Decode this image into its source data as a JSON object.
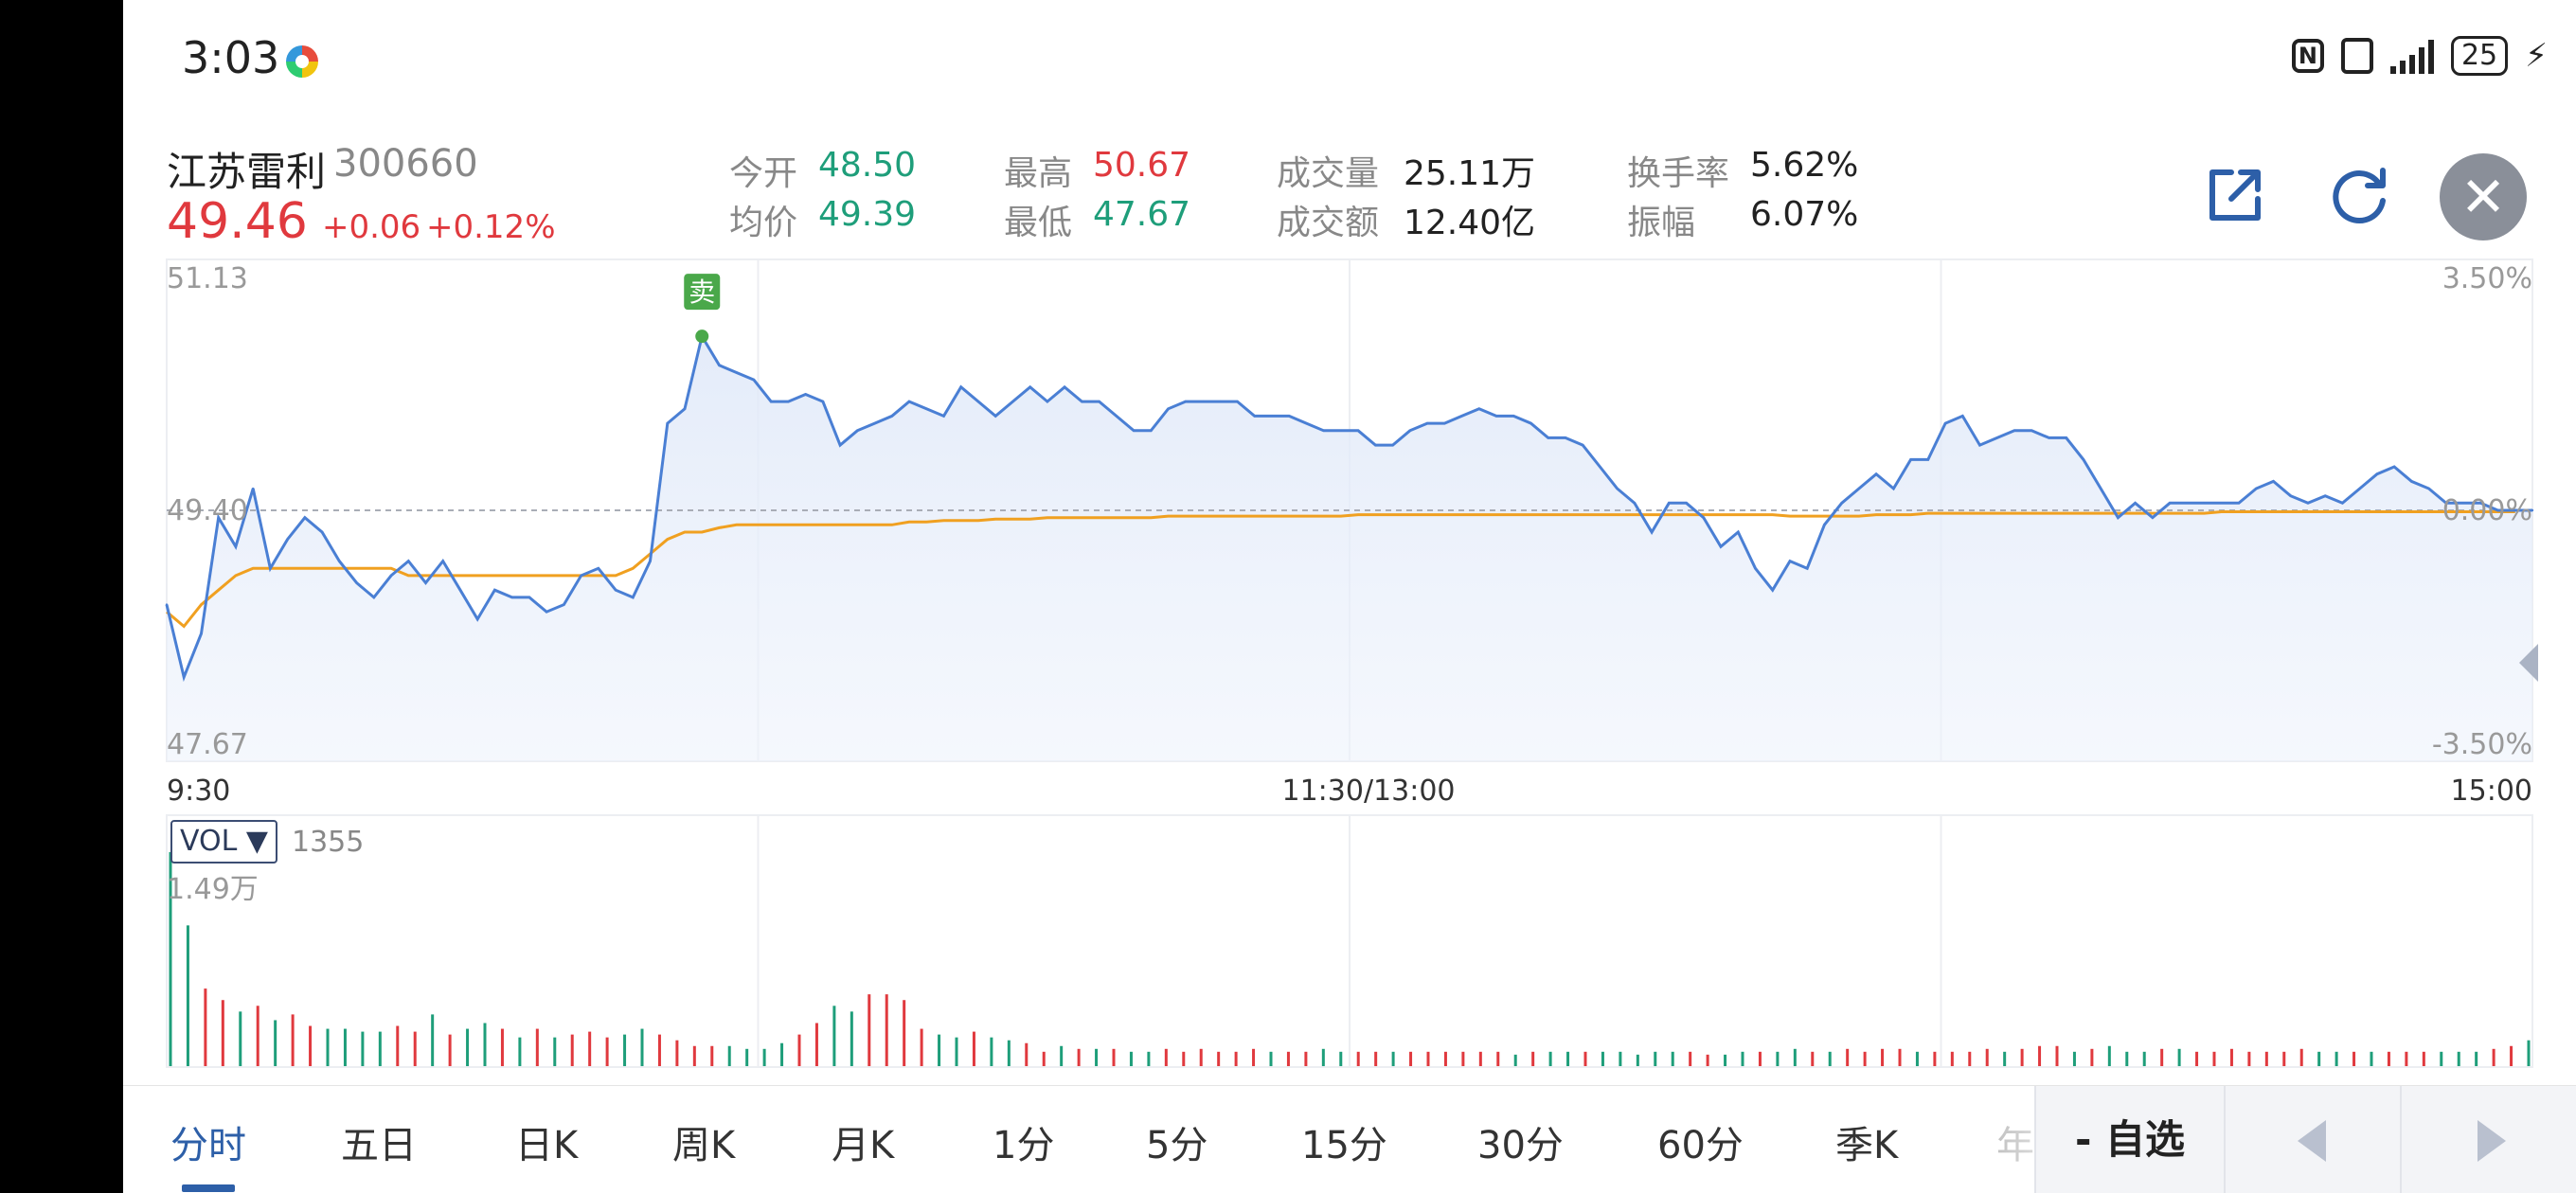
{
  "status_bar": {
    "time": "3:03",
    "battery": "25",
    "app_icon": "colorful-app-icon",
    "icons": [
      "nfc-icon",
      "vibrate-icon",
      "signal-icon",
      "battery-icon",
      "charging-icon"
    ]
  },
  "stock": {
    "name": "江苏雷利",
    "code": "300660",
    "price": "49.46",
    "change": "+0.06",
    "change_pct": "+0.12%"
  },
  "quote": {
    "open_label": "今开",
    "open": "48.50",
    "avg_label": "均价",
    "avg": "49.39",
    "high_label": "最高",
    "high": "50.67",
    "low_label": "最低",
    "low": "47.67",
    "volume_label": "成交量",
    "volume": "25.11万",
    "amount_label": "成交额",
    "amount": "12.40亿",
    "turnover_label": "换手率",
    "turnover": "5.62%",
    "amplitude_label": "振幅",
    "amplitude": "6.07%"
  },
  "toolbar_icons": [
    "share-icon",
    "refresh-icon",
    "close-icon"
  ],
  "chart": {
    "price_max_label": "51.13",
    "price_ref_label": "49.40",
    "price_min_label": "47.67",
    "pct_max_label": "3.50%",
    "pct_ref_label": "0.00%",
    "pct_min_label": "-3.50%",
    "time_start": "9:30",
    "time_mid": "11:30/13:00",
    "time_end": "15:00",
    "signal_label": "卖",
    "vol_selector": "VOL ▼",
    "vol_value": "1355",
    "vol_max_label": "1.49万"
  },
  "chart_data": {
    "type": "line",
    "ylim": [
      47.67,
      51.13
    ],
    "reference": 49.4,
    "x_range": [
      "9:30",
      "15:00"
    ],
    "series": [
      {
        "values": [
          48.75,
          48.25,
          48.55,
          49.35,
          49.15,
          49.55,
          49.0,
          49.2,
          49.35,
          49.25,
          49.05,
          48.9,
          48.8,
          48.95,
          49.05,
          48.9,
          49.05,
          48.85,
          48.65,
          48.85,
          48.8,
          48.8,
          48.7,
          48.75,
          48.95,
          49.0,
          48.85,
          48.8,
          49.05,
          50.0,
          50.1,
          50.6,
          50.4,
          50.35,
          50.3,
          50.15,
          50.15,
          50.2,
          50.15,
          49.85,
          49.95,
          50.0,
          50.05,
          50.15,
          50.1,
          50.05,
          50.25,
          50.15,
          50.05,
          50.15,
          50.25,
          50.15,
          50.25,
          50.15,
          50.15,
          50.05,
          49.95,
          49.95,
          50.1,
          50.15,
          50.15,
          50.15,
          50.15,
          50.05,
          50.05,
          50.05,
          50.0,
          49.95,
          49.95,
          49.95,
          49.85,
          49.85,
          49.95,
          50.0,
          50.0,
          50.05,
          50.1,
          50.05,
          50.05,
          50.0,
          49.9,
          49.9,
          49.85,
          49.7,
          49.55,
          49.45,
          49.25,
          49.45,
          49.45,
          49.35,
          49.15,
          49.25,
          49.0,
          48.85,
          49.05,
          49.0,
          49.3,
          49.45,
          49.55,
          49.65,
          49.55,
          49.75,
          49.75,
          50.0,
          50.05,
          49.85,
          49.9,
          49.95,
          49.95,
          49.9,
          49.9,
          49.75,
          49.55,
          49.35,
          49.45,
          49.35,
          49.45,
          49.45,
          49.45,
          49.45,
          49.45,
          49.55,
          49.6,
          49.5,
          49.45,
          49.5,
          49.45,
          49.55,
          49.65,
          49.7,
          49.6,
          49.55,
          49.45,
          49.45,
          49.45,
          49.4,
          49.4,
          49.4
        ],
        "color": "#4a7fd4"
      },
      {
        "values": [
          48.7,
          48.6,
          48.75,
          48.85,
          48.95,
          49.0,
          49.0,
          49.0,
          49.0,
          49.0,
          49.0,
          49.0,
          49.0,
          49.0,
          48.95,
          48.95,
          48.95,
          48.95,
          48.95,
          48.95,
          48.95,
          48.95,
          48.95,
          48.95,
          48.95,
          48.95,
          48.95,
          49.0,
          49.1,
          49.2,
          49.25,
          49.25,
          49.28,
          49.3,
          49.3,
          49.3,
          49.3,
          49.3,
          49.3,
          49.3,
          49.3,
          49.3,
          49.3,
          49.32,
          49.32,
          49.33,
          49.33,
          49.33,
          49.34,
          49.34,
          49.34,
          49.35,
          49.35,
          49.35,
          49.35,
          49.35,
          49.35,
          49.35,
          49.36,
          49.36,
          49.36,
          49.36,
          49.36,
          49.36,
          49.36,
          49.36,
          49.36,
          49.36,
          49.36,
          49.37,
          49.37,
          49.37,
          49.37,
          49.37,
          49.37,
          49.37,
          49.37,
          49.37,
          49.37,
          49.37,
          49.37,
          49.37,
          49.37,
          49.37,
          49.37,
          49.37,
          49.37,
          49.37,
          49.37,
          49.37,
          49.37,
          49.37,
          49.37,
          49.37,
          49.36,
          49.36,
          49.36,
          49.36,
          49.36,
          49.37,
          49.37,
          49.37,
          49.38,
          49.38,
          49.38,
          49.38,
          49.38,
          49.38,
          49.38,
          49.38,
          49.38,
          49.38,
          49.38,
          49.38,
          49.38,
          49.38,
          49.38,
          49.38,
          49.38,
          49.39,
          49.39,
          49.39,
          49.39,
          49.39,
          49.39,
          49.39,
          49.39,
          49.39,
          49.39,
          49.39,
          49.39,
          49.39,
          49.39,
          49.39,
          49.39,
          49.39,
          49.39
        ],
        "color": "#f0a020"
      }
    ],
    "volume": {
      "ylim": [
        0,
        14900
      ],
      "values": [
        14900,
        9800,
        5400,
        4600,
        3800,
        4200,
        3200,
        3600,
        2800,
        2600,
        2600,
        2400,
        2400,
        2800,
        2400,
        3600,
        2200,
        2600,
        3000,
        2600,
        2000,
        2600,
        2000,
        2200,
        2400,
        2000,
        2200,
        2600,
        2200,
        1800,
        1400,
        1400,
        1400,
        1200,
        1200,
        1600,
        2200,
        3000,
        4200,
        3800,
        5000,
        5000,
        4600,
        2600,
        2200,
        2000,
        2400,
        2000,
        1800,
        1600,
        1000,
        1400,
        1200,
        1200,
        1200,
        1000,
        1000,
        1200,
        1000,
        1200,
        1000,
        1000,
        1200,
        1000,
        1000,
        1000,
        1200,
        1000,
        1000,
        1000,
        1000,
        1000,
        1000,
        1000,
        1000,
        1000,
        1000,
        800,
        1000,
        1000,
        1000,
        1000,
        1000,
        1000,
        800,
        1000,
        1000,
        1000,
        800,
        800,
        1000,
        1000,
        1000,
        1200,
        1000,
        1000,
        1200,
        1000,
        1200,
        1200,
        1000,
        1000,
        1000,
        1000,
        1200,
        1000,
        1200,
        1400,
        1400,
        1000,
        1200,
        1400,
        1000,
        1000,
        1200,
        1200,
        1000,
        1000,
        1200,
        1000,
        1000,
        1000,
        1200,
        1000,
        1000,
        1000,
        1000,
        1000,
        1000,
        1000,
        1000,
        1000,
        1000,
        1200,
        1400,
        1800
      ],
      "colors_up_down": [
        "#e0393e",
        "#1e9e7a"
      ]
    }
  },
  "tabs": {
    "items": [
      "分时",
      "五日",
      "日K",
      "周K",
      "月K",
      "1分",
      "5分",
      "15分",
      "30分",
      "60分",
      "季K",
      "年"
    ],
    "active": "分时",
    "watchlist": "- 自选",
    "icons": [
      "prev-arrow-icon",
      "next-arrow-icon"
    ]
  }
}
